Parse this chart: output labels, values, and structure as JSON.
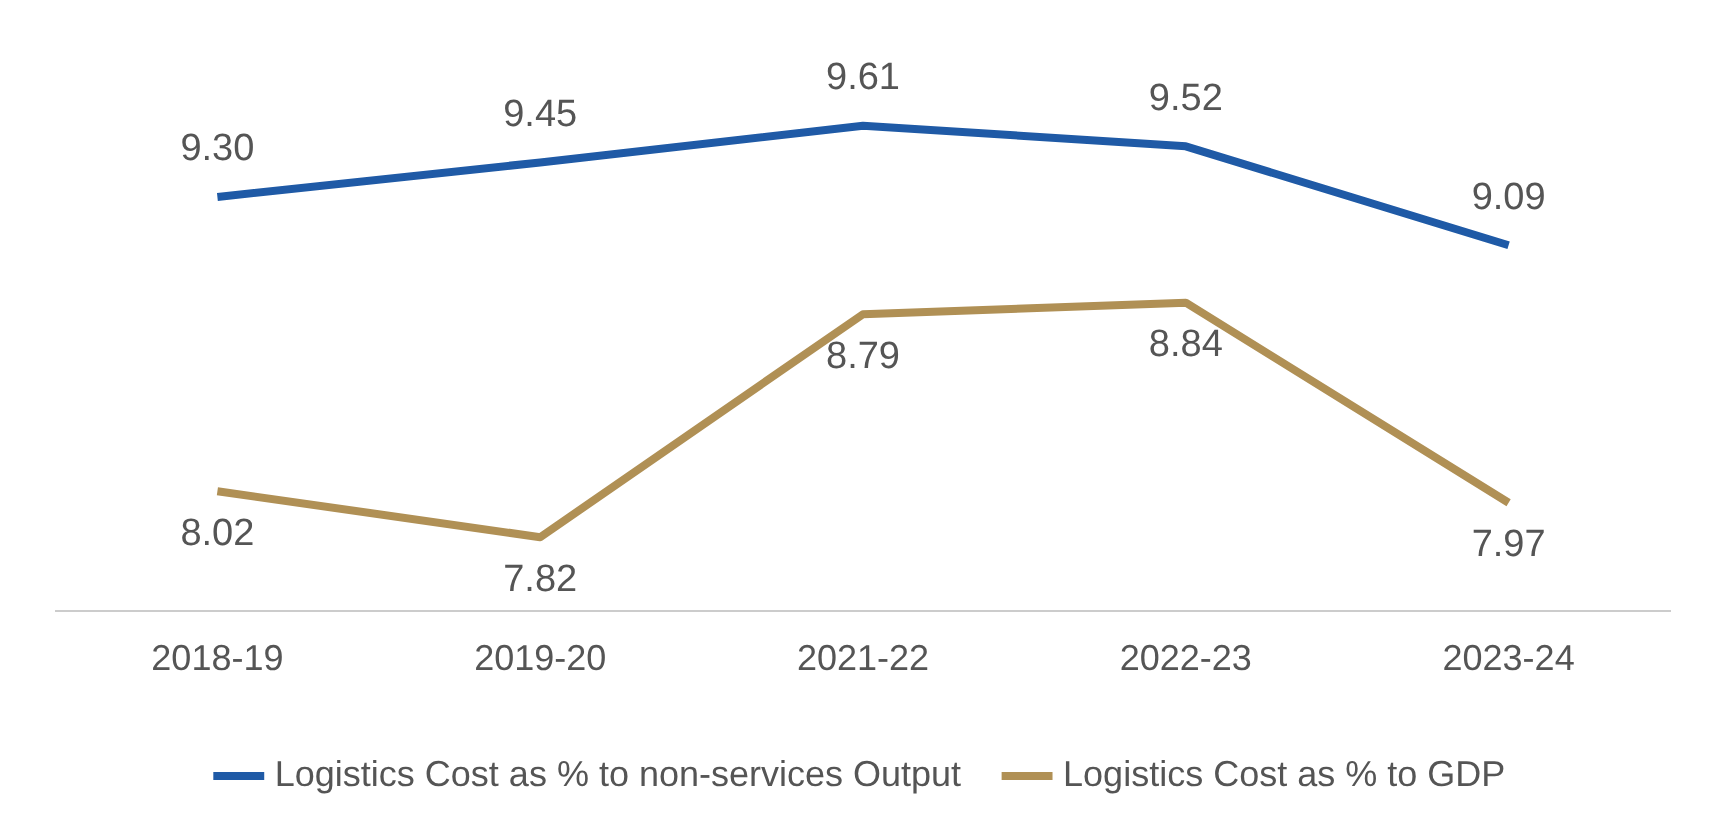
{
  "chart_data": {
    "type": "line",
    "categories": [
      "2018-19",
      "2019-20",
      "2021-22",
      "2022-23",
      "2023-24"
    ],
    "series": [
      {
        "name": "Logistics Cost as % to non-services Output",
        "color": "#1f5aa6",
        "values": [
          9.3,
          9.45,
          9.61,
          9.52,
          9.09
        ],
        "value_labels": [
          "9.30",
          "9.45",
          "9.61",
          "9.52",
          "9.09"
        ]
      },
      {
        "name": "Logistics Cost as % to GDP",
        "color": "#b09055",
        "values": [
          8.02,
          7.82,
          8.79,
          8.84,
          7.97
        ],
        "value_labels": [
          "8.02",
          "7.82",
          "8.79",
          "8.84",
          "7.97"
        ]
      }
    ],
    "data_labels": true,
    "legend": "bottom",
    "grid": false,
    "marker": "none",
    "line_style": "solid",
    "tick_labels": "x"
  }
}
